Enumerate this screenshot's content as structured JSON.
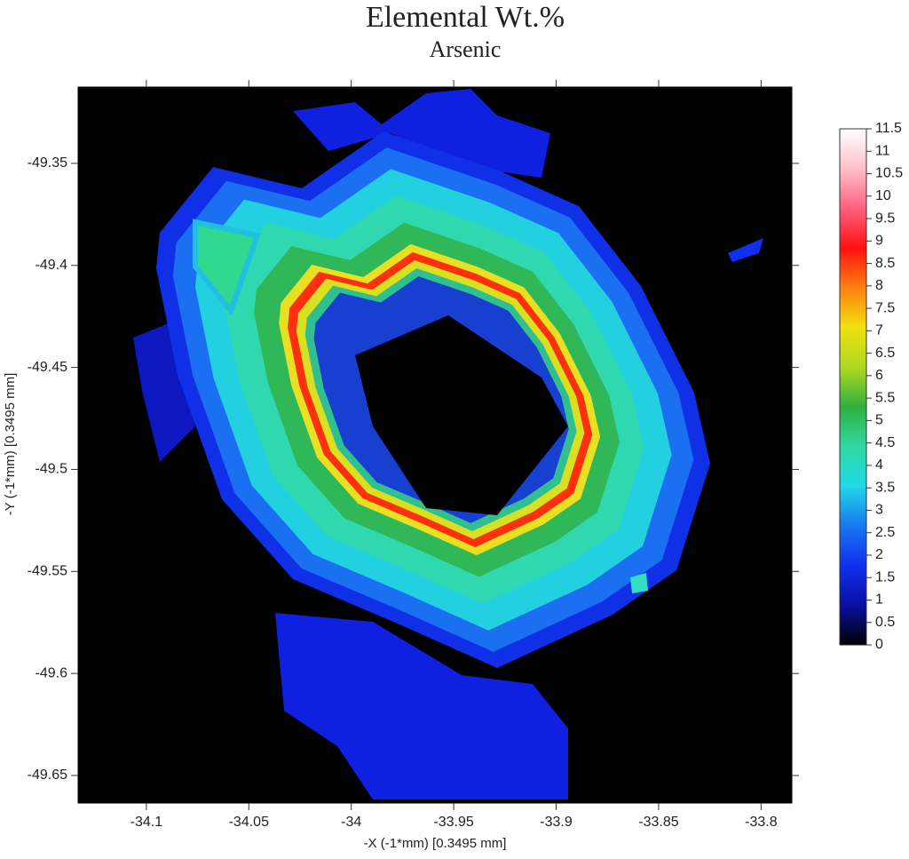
{
  "chart_data": {
    "type": "heatmap",
    "title": "Elemental Wt.%",
    "subtitle": "Arsenic",
    "x_label": "-X (-1*mm)   [0.3495 mm]",
    "y_label": "-Y (-1*mm)   [0.3495 mm]",
    "xlim": [
      -34.1333,
      -33.785
    ],
    "xticks": [
      -34.1,
      -34.05,
      -34,
      -33.95,
      -33.9,
      -33.85,
      -33.8
    ],
    "ylim": [
      -49.6635,
      -49.3126
    ],
    "yticks": [
      -49.35,
      -49.4,
      -49.45,
      -49.5,
      -49.55,
      -49.6,
      -49.65
    ],
    "clim": [
      0,
      11.5
    ],
    "cticks": [
      0,
      0.5,
      1,
      1.5,
      2,
      2.5,
      3,
      3.5,
      4,
      4.5,
      5,
      5.5,
      6,
      6.5,
      7,
      7.5,
      8,
      8.5,
      9,
      9.5,
      10,
      10.5,
      11,
      11.5
    ],
    "colormap": [
      "#000000",
      "#0a10a0",
      "#1030f0",
      "#1878f0",
      "#20d8e8",
      "#30d8a0",
      "#30b040",
      "#b0d820",
      "#f0e010",
      "#ff8010",
      "#ff1010",
      "#ff6080",
      "#ffc0c8",
      "#ffffff"
    ]
  }
}
